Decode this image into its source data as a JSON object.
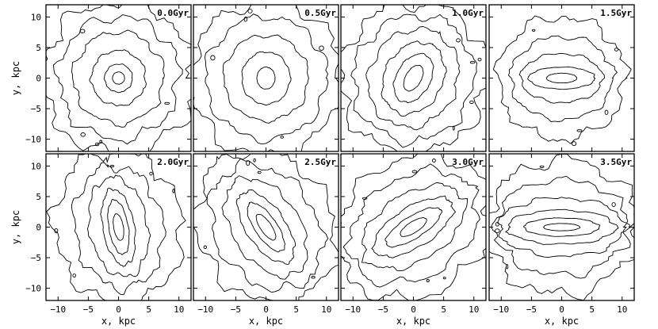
{
  "chart_data": {
    "type": "contour",
    "grid": false,
    "rows": 2,
    "cols": 4,
    "xlabel": "x, kpc",
    "ylabel": "y, kpc",
    "xlim": [
      -12,
      12
    ],
    "ylim": [
      -12,
      12
    ],
    "xticks": [
      -10,
      -5,
      0,
      5,
      10
    ],
    "yticks": [
      -10,
      -5,
      0,
      5,
      10
    ],
    "panels": [
      {
        "label": "0.0Gyr",
        "angle": 0,
        "levels": [
          {
            "a": 1.0,
            "b": 1.0
          },
          {
            "a": 2.3,
            "b": 2.3
          },
          {
            "a": 4.5,
            "b": 4.5
          },
          {
            "a": 7.5,
            "b": 7.5
          },
          {
            "a": 10.0,
            "b": 10.0
          },
          {
            "a": 12.5,
            "b": 12.5
          }
        ]
      },
      {
        "label": "0.5Gyr",
        "angle": 0,
        "levels": [
          {
            "a": 1.5,
            "b": 1.8
          },
          {
            "a": 4.0,
            "b": 4.3
          },
          {
            "a": 7.0,
            "b": 7.0
          },
          {
            "a": 10.0,
            "b": 10.0
          },
          {
            "a": 12.5,
            "b": 12.5
          }
        ]
      },
      {
        "label": "1.0Gyr",
        "angle": 60,
        "levels": [
          {
            "a": 2.3,
            "b": 1.3
          },
          {
            "a": 4.3,
            "b": 2.8
          },
          {
            "a": 6.2,
            "b": 4.8
          },
          {
            "a": 8.3,
            "b": 7.2
          },
          {
            "a": 10.5,
            "b": 9.8
          },
          {
            "a": 12.5,
            "b": 12.0
          }
        ]
      },
      {
        "label": "1.5Gyr",
        "angle": 0,
        "levels": [
          {
            "a": 2.5,
            "b": 0.8
          },
          {
            "a": 5.5,
            "b": 1.8
          },
          {
            "a": 6.8,
            "b": 4.0
          },
          {
            "a": 8.5,
            "b": 6.8
          },
          {
            "a": 10.5,
            "b": 10.0
          }
        ]
      },
      {
        "label": "2.0Gyr",
        "angle": 100,
        "levels": [
          {
            "a": 2.2,
            "b": 0.8
          },
          {
            "a": 4.5,
            "b": 1.6
          },
          {
            "a": 6.3,
            "b": 2.6
          },
          {
            "a": 8.2,
            "b": 4.8
          },
          {
            "a": 10.0,
            "b": 7.3
          },
          {
            "a": 12.5,
            "b": 10.5
          }
        ]
      },
      {
        "label": "2.5Gyr",
        "angle": 125,
        "levels": [
          {
            "a": 2.5,
            "b": 0.9
          },
          {
            "a": 4.7,
            "b": 1.8
          },
          {
            "a": 6.8,
            "b": 3.2
          },
          {
            "a": 9.0,
            "b": 5.5
          },
          {
            "a": 11.0,
            "b": 8.3
          },
          {
            "a": 13.0,
            "b": 11.0
          }
        ]
      },
      {
        "label": "3.0Gyr",
        "angle": 32,
        "levels": [
          {
            "a": 2.5,
            "b": 0.9
          },
          {
            "a": 5.3,
            "b": 1.8
          },
          {
            "a": 7.5,
            "b": 3.3
          },
          {
            "a": 9.5,
            "b": 5.5
          },
          {
            "a": 11.5,
            "b": 8.2
          },
          {
            "a": 13.5,
            "b": 11.0
          }
        ]
      },
      {
        "label": "3.5Gyr",
        "angle": 0,
        "levels": [
          {
            "a": 3.0,
            "b": 0.6
          },
          {
            "a": 6.2,
            "b": 1.5
          },
          {
            "a": 9.0,
            "b": 2.8
          },
          {
            "a": 10.5,
            "b": 4.8
          },
          {
            "a": 11.0,
            "b": 7.8
          },
          {
            "a": 12.5,
            "b": 11.0
          }
        ]
      }
    ]
  }
}
